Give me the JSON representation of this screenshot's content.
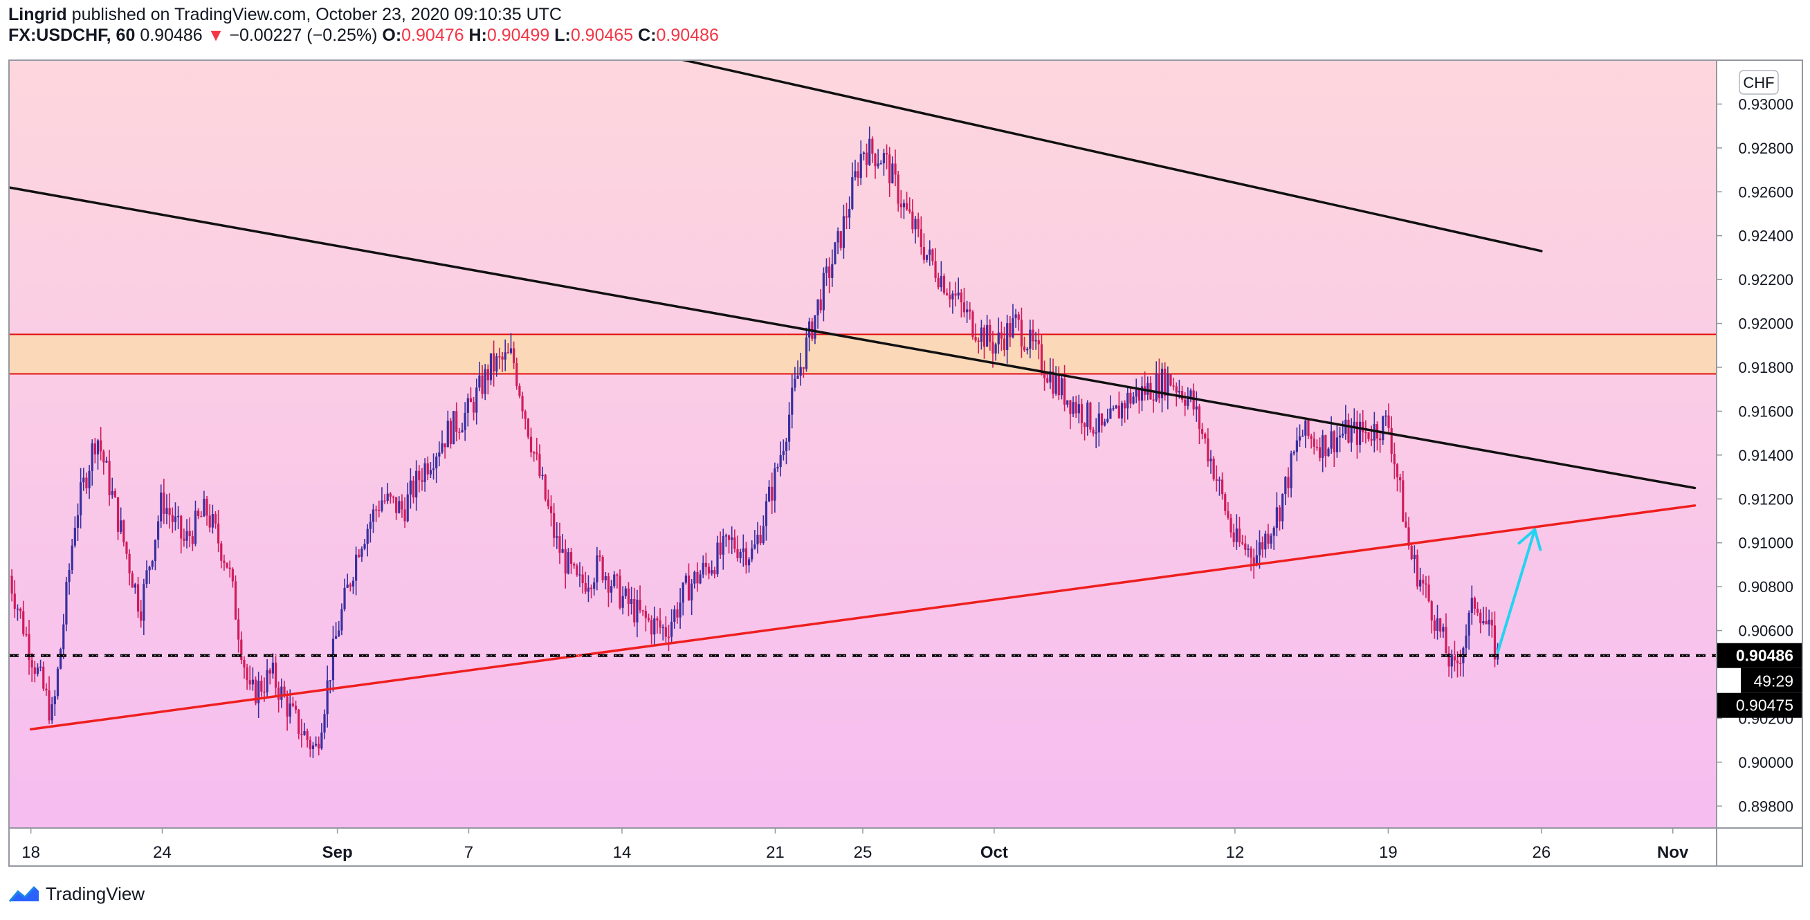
{
  "header": {
    "author": "Lingrid",
    "published": "published on TradingView.com, October 23, 2020 09:10:35 UTC",
    "symbol": "FX:USDCHF, 60",
    "last": "0.90486",
    "change_arrow": "▼",
    "change": "−0.00227 (−0.25%)",
    "open_label": "O:",
    "open": "0.90476",
    "high_label": "H:",
    "high": "0.90499",
    "low_label": "L:",
    "low": "0.90465",
    "close_label": "C:",
    "close": "0.90486"
  },
  "footer": {
    "brand": "TradingView",
    "logo_icon": "tradingview-logo-icon"
  },
  "colors": {
    "up": "#3a2fa0",
    "down": "#d01c5c",
    "bg_top": "#fdd7dd",
    "bg_bottom": "#f6bdf0",
    "zone": "#fbd8b8",
    "zone_line": "#e01010",
    "support": "#ee1f1f",
    "resistance": "#111111",
    "arrow": "#22d4f0"
  },
  "chart_data": {
    "type": "candlestick",
    "symbol": "FX:USDCHF",
    "interval": "60",
    "currency": "CHF",
    "ylim": [
      0.897,
      0.932
    ],
    "y_ticks": [
      "0.93000",
      "0.92800",
      "0.92600",
      "0.92400",
      "0.92200",
      "0.92000",
      "0.91800",
      "0.91600",
      "0.91400",
      "0.91200",
      "0.91000",
      "0.90800",
      "0.90600",
      "0.90200",
      "0.90000",
      "0.89800"
    ],
    "y_tick_values": [
      0.93,
      0.928,
      0.926,
      0.924,
      0.922,
      0.92,
      0.918,
      0.916,
      0.914,
      0.912,
      0.91,
      0.908,
      0.906,
      0.902,
      0.9,
      0.898
    ],
    "x_ticks": [
      "18",
      "24",
      "Sep",
      "7",
      "14",
      "21",
      "25",
      "Oct",
      "12",
      "19",
      "26",
      "Nov"
    ],
    "x_tick_dates": [
      "2020-08-18",
      "2020-08-24",
      "2020-09-01",
      "2020-09-07",
      "2020-09-14",
      "2020-09-21",
      "2020-09-25",
      "2020-10-01",
      "2020-10-12",
      "2020-10-19",
      "2020-10-26",
      "2020-11-01"
    ],
    "price_line": 0.90486,
    "price_label": "0.90486",
    "countdown": "49:29",
    "bid_label": "0.90475",
    "resistance_zone": [
      0.9177,
      0.9195
    ],
    "price_path": [
      {
        "date": "2020-08-17",
        "close": 0.9085
      },
      {
        "date": "2020-08-18",
        "close": 0.905
      },
      {
        "date": "2020-08-19",
        "close": 0.902
      },
      {
        "date": "2020-08-20",
        "close": 0.911
      },
      {
        "date": "2020-08-21",
        "close": 0.915
      },
      {
        "date": "2020-08-22",
        "close": 0.911
      },
      {
        "date": "2020-08-23",
        "close": 0.907
      },
      {
        "date": "2020-08-24",
        "close": 0.912
      },
      {
        "date": "2020-08-25",
        "close": 0.91
      },
      {
        "date": "2020-08-26",
        "close": 0.9115
      },
      {
        "date": "2020-08-27",
        "close": 0.909
      },
      {
        "date": "2020-08-28",
        "close": 0.903
      },
      {
        "date": "2020-08-29",
        "close": 0.904
      },
      {
        "date": "2020-08-30",
        "close": 0.902
      },
      {
        "date": "2020-08-31",
        "close": 0.9005
      },
      {
        "date": "2020-09-01",
        "close": 0.906
      },
      {
        "date": "2020-09-02",
        "close": 0.91
      },
      {
        "date": "2020-09-03",
        "close": 0.912
      },
      {
        "date": "2020-09-04",
        "close": 0.9115
      },
      {
        "date": "2020-09-05",
        "close": 0.9135
      },
      {
        "date": "2020-09-06",
        "close": 0.915
      },
      {
        "date": "2020-09-07",
        "close": 0.916
      },
      {
        "date": "2020-09-08",
        "close": 0.918
      },
      {
        "date": "2020-09-09",
        "close": 0.9185
      },
      {
        "date": "2020-09-10",
        "close": 0.914
      },
      {
        "date": "2020-09-11",
        "close": 0.91
      },
      {
        "date": "2020-09-12",
        "close": 0.908
      },
      {
        "date": "2020-09-13",
        "close": 0.909
      },
      {
        "date": "2020-09-14",
        "close": 0.9075
      },
      {
        "date": "2020-09-15",
        "close": 0.9065
      },
      {
        "date": "2020-09-16",
        "close": 0.906
      },
      {
        "date": "2020-09-17",
        "close": 0.908
      },
      {
        "date": "2020-09-18",
        "close": 0.909
      },
      {
        "date": "2020-09-19",
        "close": 0.91
      },
      {
        "date": "2020-09-20",
        "close": 0.9095
      },
      {
        "date": "2020-09-21",
        "close": 0.913
      },
      {
        "date": "2020-09-22",
        "close": 0.9175
      },
      {
        "date": "2020-09-23",
        "close": 0.921
      },
      {
        "date": "2020-09-24",
        "close": 0.924
      },
      {
        "date": "2020-09-25",
        "close": 0.928
      },
      {
        "date": "2020-09-26",
        "close": 0.9275
      },
      {
        "date": "2020-09-27",
        "close": 0.925
      },
      {
        "date": "2020-09-28",
        "close": 0.923
      },
      {
        "date": "2020-09-29",
        "close": 0.9215
      },
      {
        "date": "2020-09-30",
        "close": 0.92
      },
      {
        "date": "2020-10-01",
        "close": 0.919
      },
      {
        "date": "2020-10-02",
        "close": 0.92
      },
      {
        "date": "2020-10-03",
        "close": 0.9185
      },
      {
        "date": "2020-10-04",
        "close": 0.917
      },
      {
        "date": "2020-10-05",
        "close": 0.916
      },
      {
        "date": "2020-10-06",
        "close": 0.915
      },
      {
        "date": "2020-10-07",
        "close": 0.9165
      },
      {
        "date": "2020-10-08",
        "close": 0.917
      },
      {
        "date": "2020-10-09",
        "close": 0.9175
      },
      {
        "date": "2020-10-10",
        "close": 0.9165
      },
      {
        "date": "2020-10-11",
        "close": 0.9135
      },
      {
        "date": "2020-10-12",
        "close": 0.91
      },
      {
        "date": "2020-10-13",
        "close": 0.9095
      },
      {
        "date": "2020-10-14",
        "close": 0.9115
      },
      {
        "date": "2020-10-15",
        "close": 0.915
      },
      {
        "date": "2020-10-16",
        "close": 0.9145
      },
      {
        "date": "2020-10-17",
        "close": 0.915
      },
      {
        "date": "2020-10-18",
        "close": 0.915
      },
      {
        "date": "2020-10-19",
        "close": 0.9155
      },
      {
        "date": "2020-10-20",
        "close": 0.9095
      },
      {
        "date": "2020-10-21",
        "close": 0.907
      },
      {
        "date": "2020-10-22",
        "close": 0.904
      },
      {
        "date": "2020-10-23",
        "close": 0.9075
      },
      {
        "date": "2020-10-24",
        "close": 0.90486
      }
    ],
    "trendlines": [
      {
        "name": "upper-resistance",
        "color": "#111111",
        "start": {
          "date": "2020-09-11",
          "price": 0.9333
        },
        "end": {
          "date": "2020-10-26",
          "price": 0.9233
        }
      },
      {
        "name": "descending-resistance",
        "color": "#111111",
        "start": {
          "date": "2020-08-17",
          "price": 0.9262
        },
        "end": {
          "date": "2020-11-02",
          "price": 0.9125
        }
      },
      {
        "name": "ascending-support",
        "color": "#ee1f1f",
        "start": {
          "date": "2020-08-18",
          "price": 0.9015
        },
        "end": {
          "date": "2020-11-02",
          "price": 0.9117
        }
      }
    ],
    "projection_arrow": {
      "from": {
        "date": "2020-10-24",
        "price": 0.905
      },
      "to": {
        "date": "2020-10-25",
        "price": 0.9106
      }
    }
  }
}
